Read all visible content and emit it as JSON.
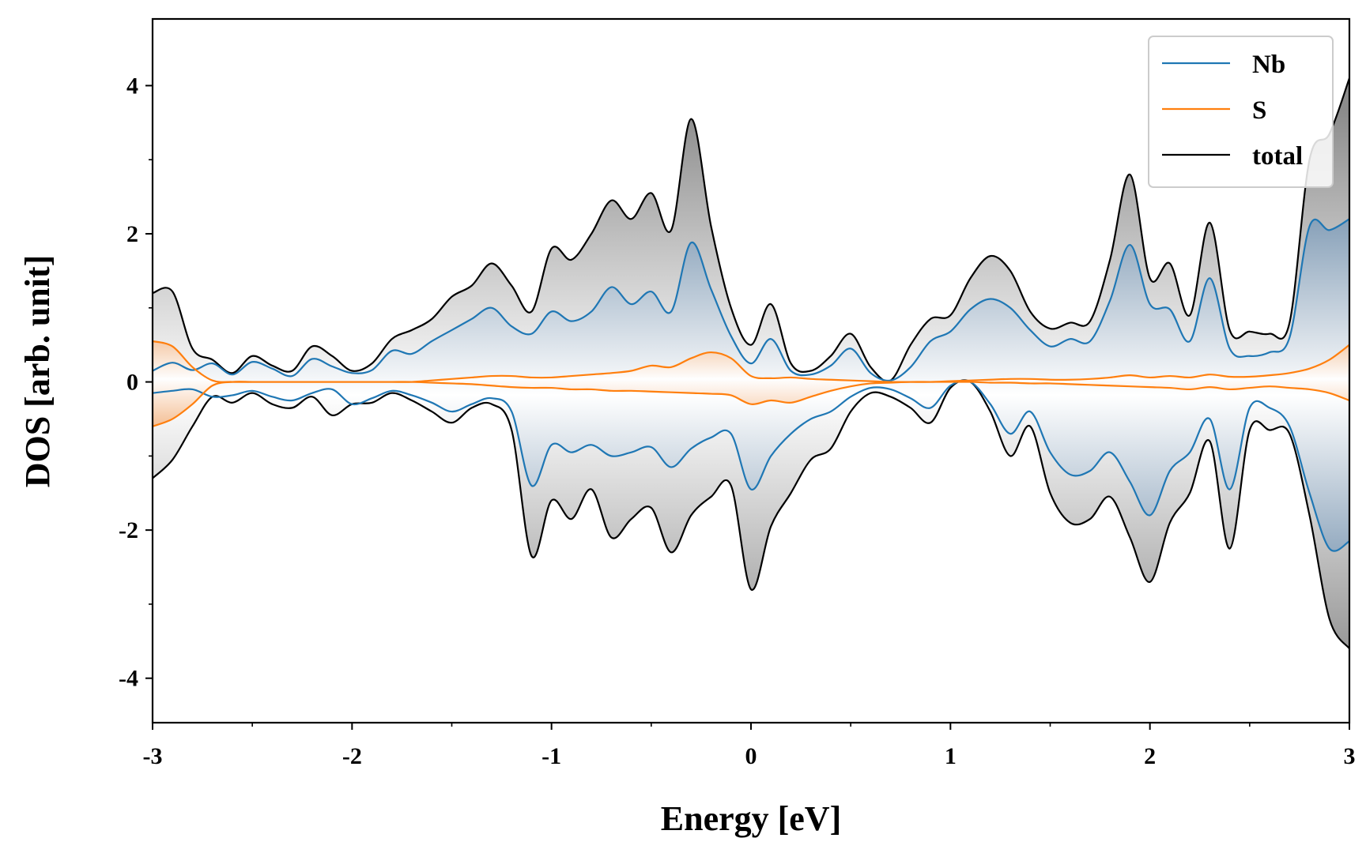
{
  "chart_data": {
    "type": "line",
    "xlabel": "Energy [eV]",
    "ylabel": "DOS [arb. unit]",
    "xlim": [
      -3,
      3
    ],
    "ylim": [
      -4.6,
      4.9
    ],
    "x_ticks": [
      -3,
      -2,
      -1,
      0,
      1,
      2,
      3
    ],
    "x_tick_labels": [
      "-3",
      "-2",
      "-1",
      "0",
      "1",
      "2",
      "3"
    ],
    "y_ticks": [
      -4,
      -2,
      0,
      2,
      4
    ],
    "y_tick_labels": [
      "-4",
      "-2",
      "0",
      "2",
      "4"
    ],
    "x_minor_step": 0.5,
    "y_minor_step": 1,
    "grid": false,
    "legend_position": "top-right",
    "fill": "gray-gradient (total) and blue-gradient (Nb) between curve and zero",
    "series": [
      {
        "name": "Nb",
        "color": "#1f77b4",
        "x_up": [
          -3.0,
          -2.9,
          -2.8,
          -2.7,
          -2.6,
          -2.5,
          -2.4,
          -2.3,
          -2.2,
          -2.1,
          -2.0,
          -1.9,
          -1.8,
          -1.7,
          -1.6,
          -1.5,
          -1.4,
          -1.3,
          -1.2,
          -1.1,
          -1.0,
          -0.9,
          -0.8,
          -0.7,
          -0.6,
          -0.5,
          -0.4,
          -0.3,
          -0.2,
          -0.1,
          0.0,
          0.1,
          0.2,
          0.3,
          0.4,
          0.5,
          0.6,
          0.7,
          0.8,
          0.9,
          1.0,
          1.1,
          1.2,
          1.3,
          1.4,
          1.5,
          1.6,
          1.7,
          1.8,
          1.9,
          2.0,
          2.1,
          2.2,
          2.3,
          2.4,
          2.5,
          2.6,
          2.7,
          2.8,
          2.9,
          3.0
        ],
        "y_up": [
          0.15,
          0.26,
          0.16,
          0.25,
          0.1,
          0.27,
          0.18,
          0.08,
          0.31,
          0.21,
          0.12,
          0.16,
          0.42,
          0.38,
          0.55,
          0.7,
          0.85,
          1.0,
          0.75,
          0.65,
          0.95,
          0.82,
          0.95,
          1.28,
          1.05,
          1.22,
          0.95,
          1.88,
          1.25,
          0.62,
          0.25,
          0.58,
          0.15,
          0.1,
          0.22,
          0.45,
          0.12,
          0.02,
          0.2,
          0.55,
          0.68,
          0.98,
          1.12,
          1.0,
          0.7,
          0.48,
          0.58,
          0.55,
          1.1,
          1.85,
          1.05,
          0.98,
          0.55,
          1.4,
          0.45,
          0.35,
          0.4,
          0.6,
          2.1,
          2.05,
          2.2
        ],
        "x_dn": [
          -3.0,
          -2.9,
          -2.8,
          -2.7,
          -2.6,
          -2.5,
          -2.4,
          -2.3,
          -2.2,
          -2.1,
          -2.0,
          -1.9,
          -1.8,
          -1.7,
          -1.6,
          -1.5,
          -1.4,
          -1.3,
          -1.2,
          -1.1,
          -1.0,
          -0.9,
          -0.8,
          -0.7,
          -0.6,
          -0.5,
          -0.4,
          -0.3,
          -0.2,
          -0.1,
          0.0,
          0.1,
          0.2,
          0.3,
          0.4,
          0.5,
          0.6,
          0.7,
          0.8,
          0.9,
          1.0,
          1.1,
          1.2,
          1.3,
          1.4,
          1.5,
          1.6,
          1.7,
          1.8,
          1.9,
          2.0,
          2.1,
          2.2,
          2.3,
          2.4,
          2.5,
          2.6,
          2.7,
          2.8,
          2.9,
          3.0
        ],
        "y_dn": [
          -0.15,
          -0.12,
          -0.1,
          -0.2,
          -0.18,
          -0.12,
          -0.2,
          -0.25,
          -0.15,
          -0.1,
          -0.3,
          -0.22,
          -0.12,
          -0.18,
          -0.28,
          -0.4,
          -0.3,
          -0.22,
          -0.4,
          -1.4,
          -0.85,
          -0.95,
          -0.85,
          -1.0,
          -0.95,
          -0.88,
          -1.15,
          -0.9,
          -0.75,
          -0.7,
          -1.45,
          -1.0,
          -0.7,
          -0.5,
          -0.4,
          -0.2,
          -0.08,
          -0.1,
          -0.22,
          -0.35,
          -0.05,
          0.0,
          -0.3,
          -0.7,
          -0.4,
          -0.95,
          -1.25,
          -1.2,
          -0.95,
          -1.35,
          -1.8,
          -1.2,
          -0.95,
          -0.5,
          -1.45,
          -0.35,
          -0.35,
          -0.6,
          -1.5,
          -2.25,
          -2.15
        ]
      },
      {
        "name": "S",
        "color": "#ff7f0e",
        "x_up": [
          -3.0,
          -2.9,
          -2.8,
          -2.7,
          -2.6,
          -2.5,
          -2.4,
          -2.3,
          -2.2,
          -2.1,
          -2.0,
          -1.9,
          -1.8,
          -1.7,
          -1.6,
          -1.5,
          -1.4,
          -1.3,
          -1.2,
          -1.1,
          -1.0,
          -0.9,
          -0.8,
          -0.7,
          -0.6,
          -0.5,
          -0.4,
          -0.3,
          -0.2,
          -0.1,
          0.0,
          0.1,
          0.2,
          0.3,
          0.4,
          0.5,
          0.6,
          0.7,
          0.8,
          0.9,
          1.0,
          1.1,
          1.2,
          1.3,
          1.4,
          1.5,
          1.6,
          1.7,
          1.8,
          1.9,
          2.0,
          2.1,
          2.2,
          2.3,
          2.4,
          2.5,
          2.6,
          2.7,
          2.8,
          2.9,
          3.0
        ],
        "y_up": [
          0.55,
          0.48,
          0.2,
          0.02,
          0.0,
          0.0,
          0.0,
          0.0,
          0.0,
          0.0,
          0.0,
          0.0,
          0.0,
          0.0,
          0.02,
          0.04,
          0.06,
          0.08,
          0.08,
          0.06,
          0.06,
          0.08,
          0.1,
          0.12,
          0.15,
          0.22,
          0.2,
          0.32,
          0.4,
          0.32,
          0.08,
          0.05,
          0.06,
          0.04,
          0.03,
          0.02,
          0.01,
          0.0,
          0.0,
          0.0,
          0.01,
          0.02,
          0.03,
          0.04,
          0.04,
          0.03,
          0.03,
          0.04,
          0.06,
          0.09,
          0.06,
          0.08,
          0.06,
          0.1,
          0.07,
          0.07,
          0.09,
          0.12,
          0.18,
          0.3,
          0.5
        ],
        "x_dn": [
          -3.0,
          -2.9,
          -2.8,
          -2.7,
          -2.6,
          -2.5,
          -2.4,
          -2.3,
          -2.2,
          -2.1,
          -2.0,
          -1.9,
          -1.8,
          -1.7,
          -1.6,
          -1.5,
          -1.4,
          -1.3,
          -1.2,
          -1.1,
          -1.0,
          -0.9,
          -0.8,
          -0.7,
          -0.6,
          -0.5,
          -0.4,
          -0.3,
          -0.2,
          -0.1,
          0.0,
          0.1,
          0.2,
          0.3,
          0.4,
          0.5,
          0.6,
          0.7,
          0.8,
          0.9,
          1.0,
          1.1,
          1.2,
          1.3,
          1.4,
          1.5,
          1.6,
          1.7,
          1.8,
          1.9,
          2.0,
          2.1,
          2.2,
          2.3,
          2.4,
          2.5,
          2.6,
          2.7,
          2.8,
          2.9,
          3.0
        ],
        "y_dn": [
          -0.6,
          -0.5,
          -0.3,
          -0.05,
          0.0,
          0.0,
          0.0,
          0.0,
          0.0,
          0.0,
          0.0,
          0.0,
          0.0,
          0.0,
          -0.01,
          -0.02,
          -0.03,
          -0.05,
          -0.07,
          -0.08,
          -0.08,
          -0.1,
          -0.1,
          -0.12,
          -0.12,
          -0.13,
          -0.14,
          -0.15,
          -0.16,
          -0.18,
          -0.3,
          -0.25,
          -0.28,
          -0.2,
          -0.12,
          -0.06,
          -0.02,
          -0.01,
          0.0,
          0.0,
          0.0,
          0.0,
          -0.01,
          -0.01,
          -0.02,
          -0.02,
          -0.03,
          -0.04,
          -0.05,
          -0.06,
          -0.07,
          -0.08,
          -0.1,
          -0.07,
          -0.1,
          -0.08,
          -0.06,
          -0.08,
          -0.1,
          -0.15,
          -0.25
        ]
      },
      {
        "name": "total",
        "color": "#000000",
        "x_up": [
          -3.0,
          -2.9,
          -2.8,
          -2.7,
          -2.6,
          -2.5,
          -2.4,
          -2.3,
          -2.2,
          -2.1,
          -2.0,
          -1.9,
          -1.8,
          -1.7,
          -1.6,
          -1.5,
          -1.4,
          -1.3,
          -1.2,
          -1.1,
          -1.0,
          -0.9,
          -0.8,
          -0.7,
          -0.6,
          -0.5,
          -0.4,
          -0.3,
          -0.2,
          -0.1,
          0.0,
          0.1,
          0.2,
          0.3,
          0.4,
          0.5,
          0.6,
          0.7,
          0.8,
          0.9,
          1.0,
          1.1,
          1.2,
          1.3,
          1.4,
          1.5,
          1.6,
          1.7,
          1.8,
          1.9,
          2.0,
          2.1,
          2.2,
          2.3,
          2.4,
          2.5,
          2.6,
          2.7,
          2.8,
          2.9,
          3.0
        ],
        "y_up": [
          1.2,
          1.22,
          0.45,
          0.3,
          0.12,
          0.35,
          0.22,
          0.15,
          0.48,
          0.35,
          0.15,
          0.25,
          0.58,
          0.7,
          0.85,
          1.15,
          1.3,
          1.6,
          1.3,
          0.95,
          1.8,
          1.65,
          2.0,
          2.45,
          2.2,
          2.55,
          2.05,
          3.55,
          2.1,
          1.0,
          0.5,
          1.05,
          0.25,
          0.15,
          0.35,
          0.65,
          0.2,
          0.02,
          0.5,
          0.85,
          0.9,
          1.4,
          1.7,
          1.5,
          0.95,
          0.72,
          0.8,
          0.82,
          1.65,
          2.8,
          1.4,
          1.6,
          0.9,
          2.15,
          0.7,
          0.68,
          0.65,
          0.8,
          3.0,
          3.35,
          4.1
        ],
        "x_dn": [
          -3.0,
          -2.9,
          -2.8,
          -2.7,
          -2.6,
          -2.5,
          -2.4,
          -2.3,
          -2.2,
          -2.1,
          -2.0,
          -1.9,
          -1.8,
          -1.7,
          -1.6,
          -1.5,
          -1.4,
          -1.3,
          -1.2,
          -1.1,
          -1.0,
          -0.9,
          -0.8,
          -0.7,
          -0.6,
          -0.5,
          -0.4,
          -0.3,
          -0.2,
          -0.1,
          0.0,
          0.1,
          0.2,
          0.3,
          0.4,
          0.5,
          0.6,
          0.7,
          0.8,
          0.9,
          1.0,
          1.1,
          1.2,
          1.3,
          1.4,
          1.5,
          1.6,
          1.7,
          1.8,
          1.9,
          2.0,
          2.1,
          2.2,
          2.3,
          2.4,
          2.5,
          2.6,
          2.7,
          2.8,
          2.9,
          3.0
        ],
        "y_dn": [
          -1.3,
          -1.05,
          -0.6,
          -0.2,
          -0.28,
          -0.15,
          -0.3,
          -0.35,
          -0.2,
          -0.45,
          -0.3,
          -0.28,
          -0.15,
          -0.25,
          -0.4,
          -0.55,
          -0.35,
          -0.3,
          -0.65,
          -2.35,
          -1.6,
          -1.85,
          -1.45,
          -2.1,
          -1.85,
          -1.7,
          -2.3,
          -1.8,
          -1.55,
          -1.4,
          -2.8,
          -1.95,
          -1.5,
          -1.05,
          -0.9,
          -0.4,
          -0.15,
          -0.2,
          -0.35,
          -0.55,
          -0.08,
          0.0,
          -0.4,
          -1.0,
          -0.6,
          -1.5,
          -1.9,
          -1.85,
          -1.55,
          -2.1,
          -2.7,
          -1.9,
          -1.5,
          -0.8,
          -2.25,
          -0.65,
          -0.65,
          -0.7,
          -1.8,
          -3.2,
          -3.6
        ]
      }
    ]
  }
}
